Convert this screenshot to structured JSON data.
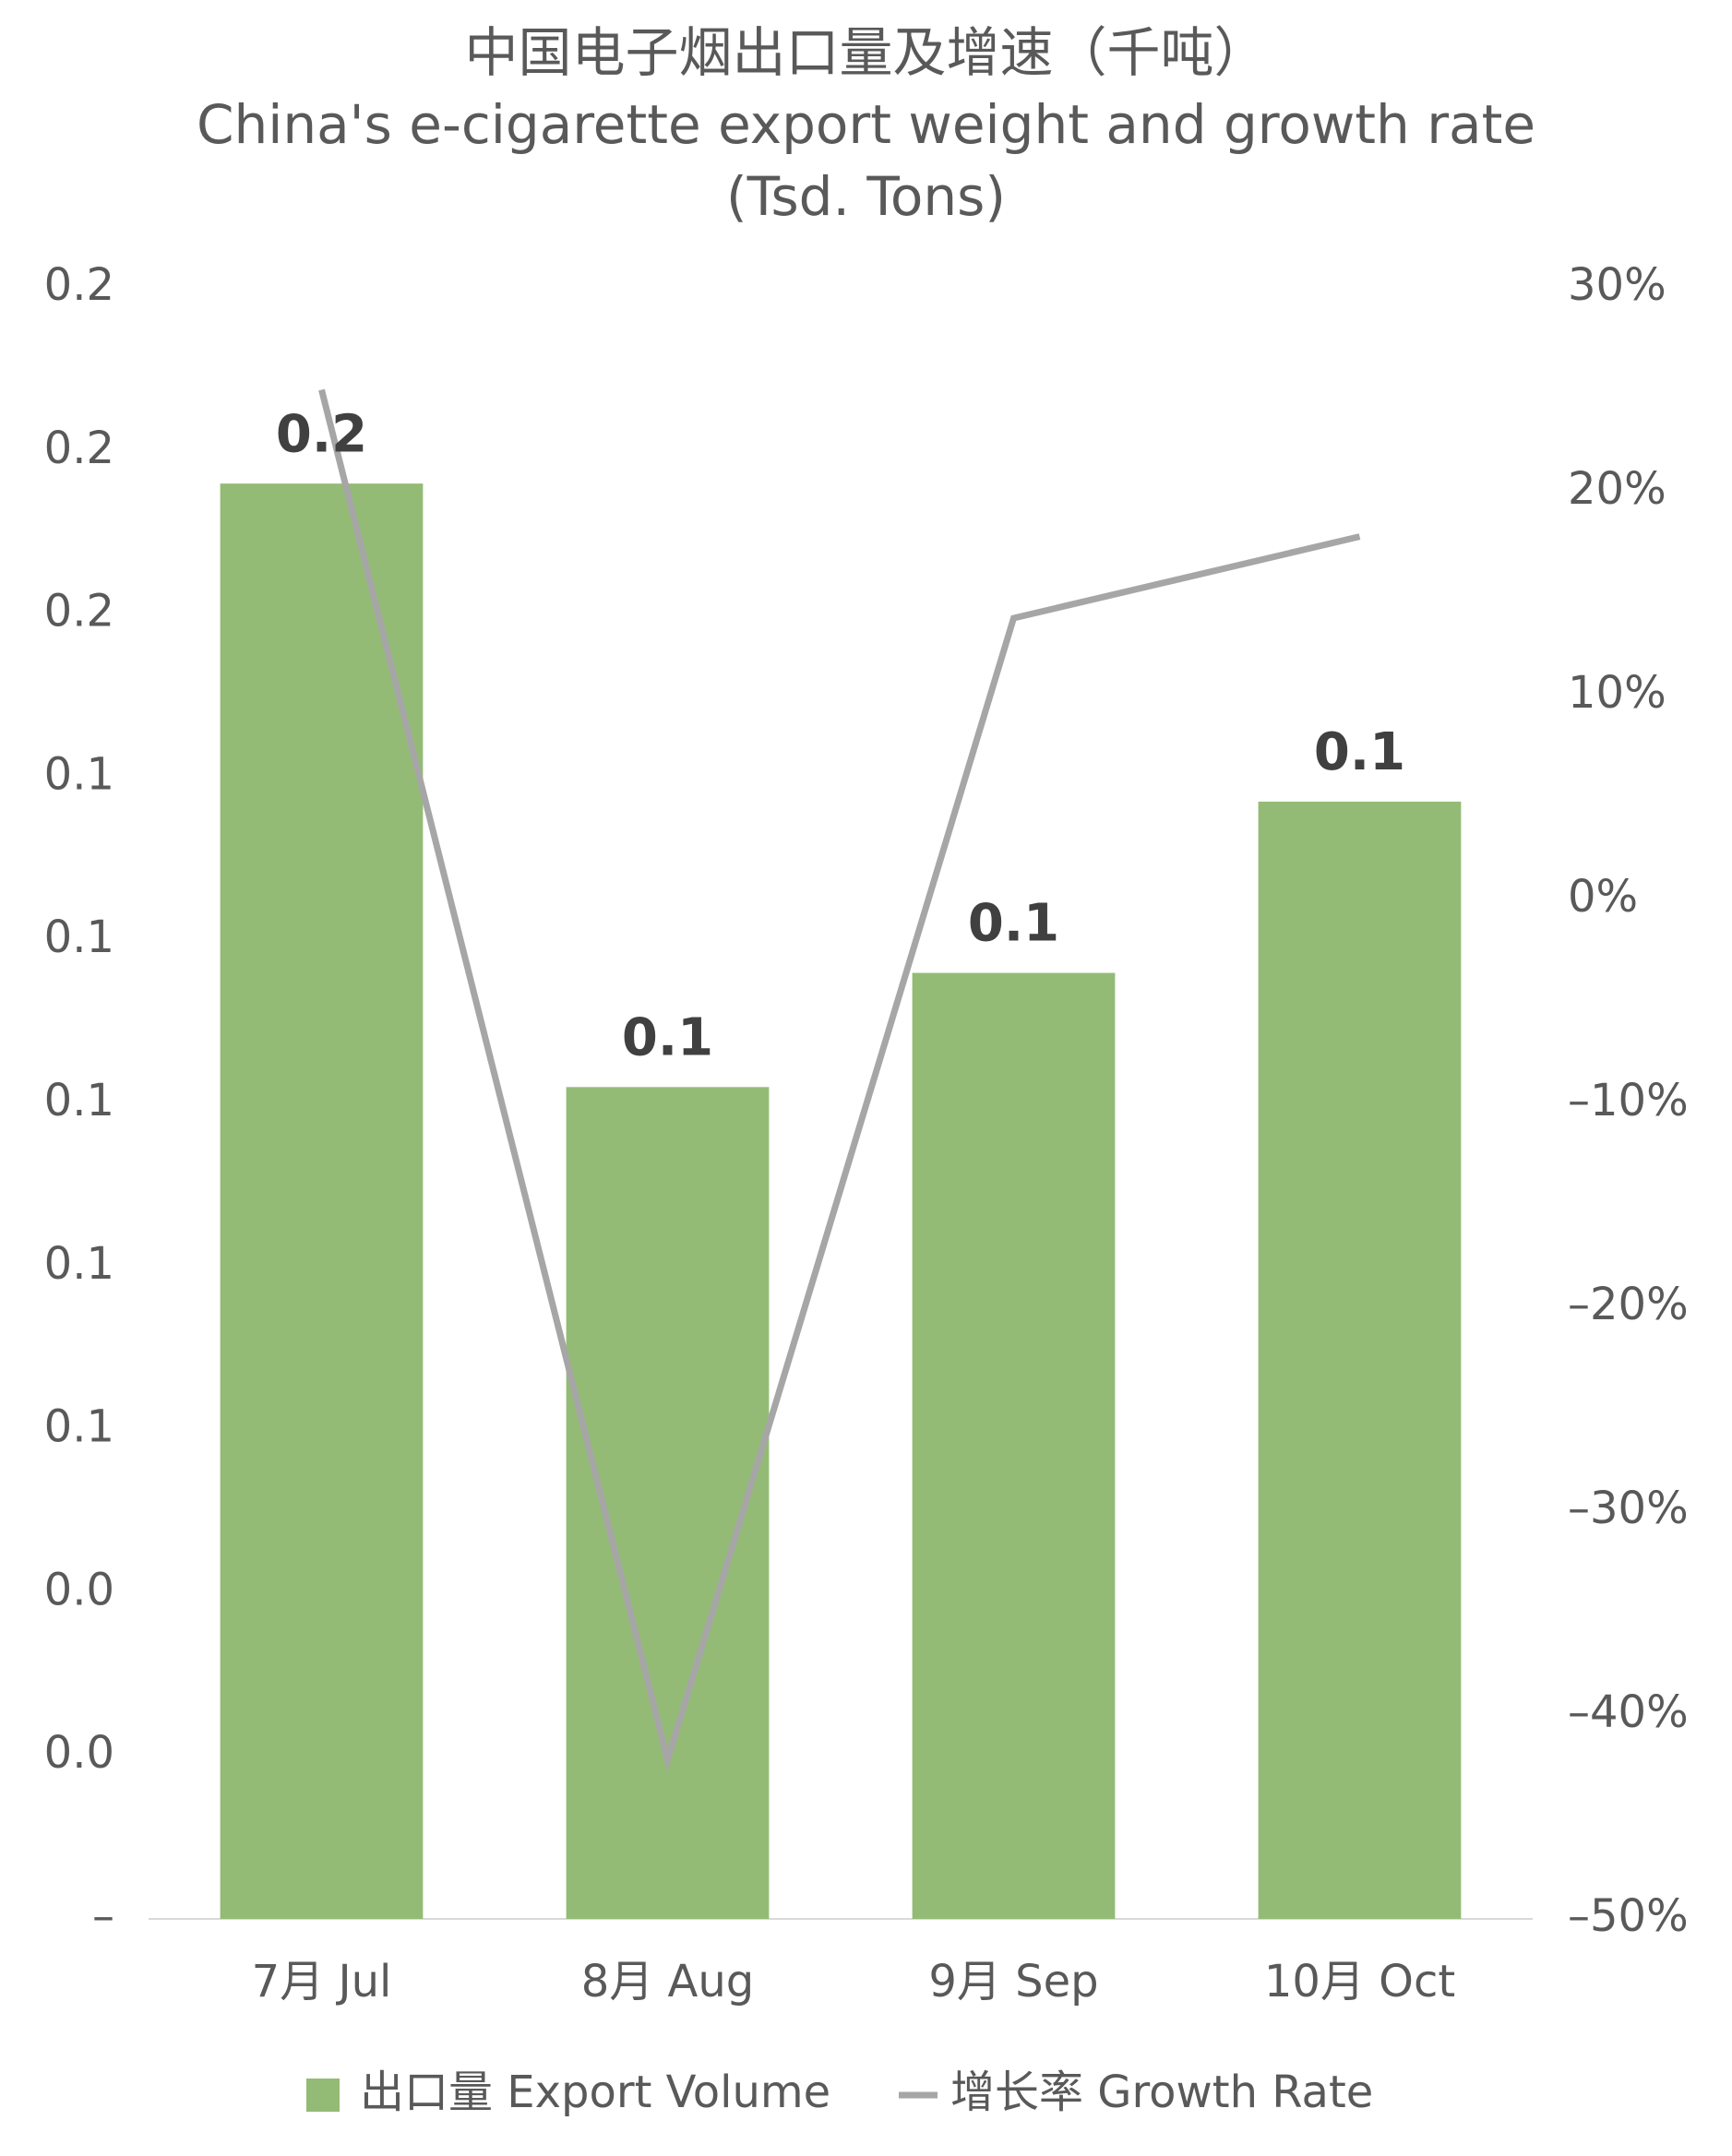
{
  "chart_data": {
    "type": "bar_line",
    "title": "中国电子烟出口量及增速（千吨）",
    "subtitle": "China's e-cigarette export weight and growth rate (Tsd. Tons)",
    "categories": [
      "7月 Jul",
      "8月 Aug",
      "9月 Sep",
      "10月 Oct"
    ],
    "series": [
      {
        "name": "出口量 Export Volume",
        "type": "bar",
        "color": "#93bb75",
        "axis": "y",
        "values": [
          0.176,
          0.102,
          0.116,
          0.137
        ],
        "value_labels": [
          "0.2",
          "0.1",
          "0.1",
          "0.1"
        ]
      },
      {
        "name": "增长率 Growth Rate",
        "type": "line",
        "color": "#a6a6a6",
        "axis": "y2",
        "values": [
          25.0,
          -42.2,
          13.8,
          17.8
        ]
      }
    ],
    "ylim": [
      0,
      0.2
    ],
    "yticks": [
      {
        "value": 0.2,
        "label": "0.2"
      },
      {
        "value": 0.18,
        "label": "0.2"
      },
      {
        "value": 0.16,
        "label": "0.2"
      },
      {
        "value": 0.14,
        "label": "0.1"
      },
      {
        "value": 0.12,
        "label": "0.1"
      },
      {
        "value": 0.1,
        "label": "0.1"
      },
      {
        "value": 0.08,
        "label": "0.1"
      },
      {
        "value": 0.06,
        "label": "0.1"
      },
      {
        "value": 0.04,
        "label": "0.0"
      },
      {
        "value": 0.02,
        "label": "0.0"
      },
      {
        "value": 0,
        "label": "–"
      }
    ],
    "y2lim": [
      -50,
      30
    ],
    "y2ticks": [
      {
        "value": 30,
        "label": "30%"
      },
      {
        "value": 20,
        "label": "20%"
      },
      {
        "value": 10,
        "label": "10%"
      },
      {
        "value": 0,
        "label": "0%"
      },
      {
        "value": -10,
        "label": "–10%"
      },
      {
        "value": -20,
        "label": "–20%"
      },
      {
        "value": -30,
        "label": "–30%"
      },
      {
        "value": -40,
        "label": "–40%"
      },
      {
        "value": -50,
        "label": "–50%"
      }
    ],
    "grid": false,
    "legend": "bottom"
  }
}
